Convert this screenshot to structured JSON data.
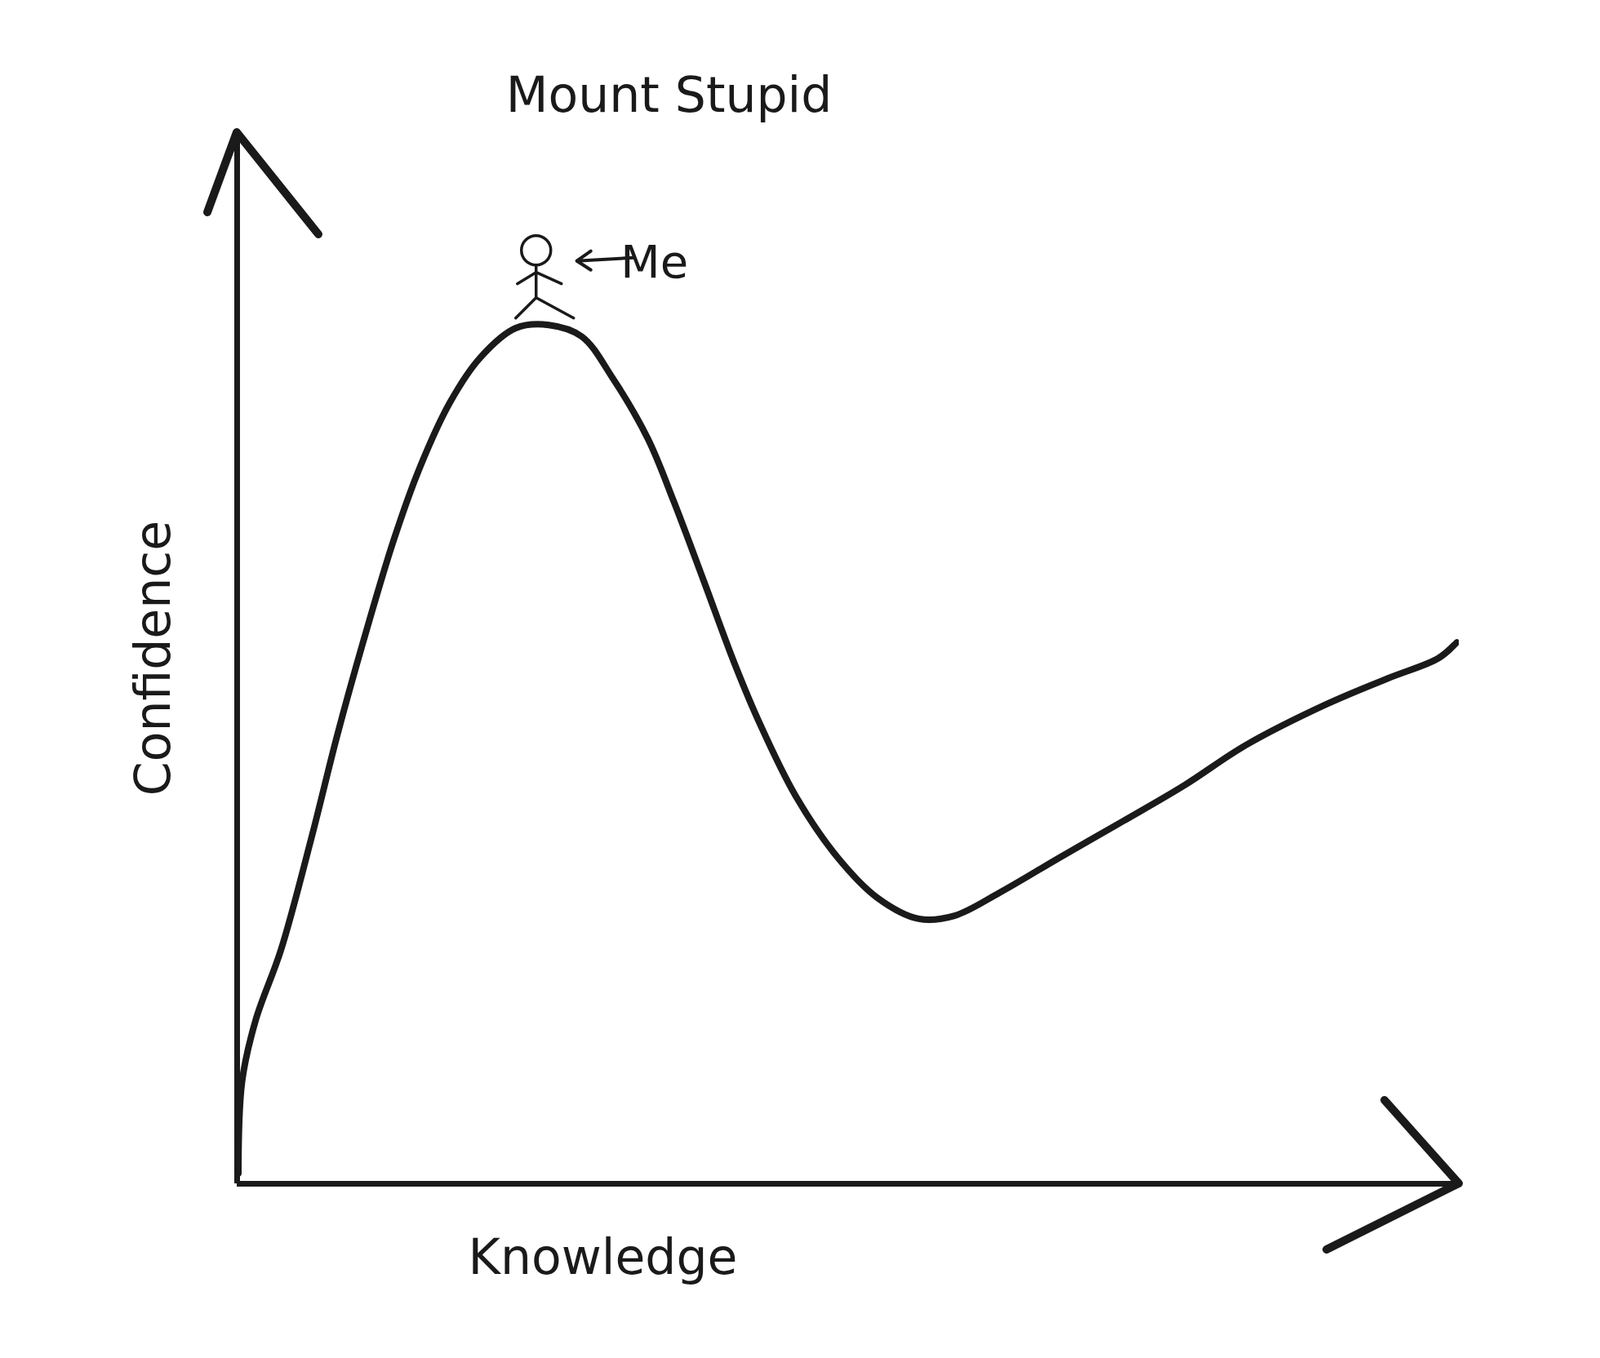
{
  "chart_data": {
    "type": "line",
    "title": "Mount Stupid",
    "x_label": "Knowledge",
    "y_label": "Confidence",
    "annotations": [
      {
        "text": "Me",
        "x": 25.5,
        "y": 81.7
      }
    ],
    "x": [
      0.1,
      0.4,
      1.5,
      3.6,
      6.1,
      8.2,
      10.3,
      12.8,
      14.9,
      17.4,
      19.9,
      22.8,
      25.5,
      28.2,
      30.7,
      33.6,
      35.7,
      38.2,
      40.7,
      42.8,
      45.7,
      49.1,
      52.4,
      55.8,
      58.7,
      62.4,
      67.4,
      72.5,
      77.5,
      82.5,
      89.1,
      94.2,
      98.3,
      99.8
    ],
    "values": [
      1.0,
      9.7,
      15.5,
      22.3,
      33.0,
      42.7,
      51.5,
      61.2,
      68.0,
      74.3,
      78.6,
      81.4,
      81.7,
      80.6,
      76.7,
      70.9,
      65.0,
      57.3,
      49.5,
      43.7,
      36.9,
      31.1,
      27.2,
      25.2,
      25.5,
      27.7,
      31.1,
      34.5,
      37.9,
      41.7,
      45.6,
      48.1,
      50.0,
      51.5
    ],
    "xlim": [
      0,
      100
    ],
    "ylim": [
      0,
      100
    ],
    "tick_labels": false,
    "color": "#1a1a1a"
  }
}
